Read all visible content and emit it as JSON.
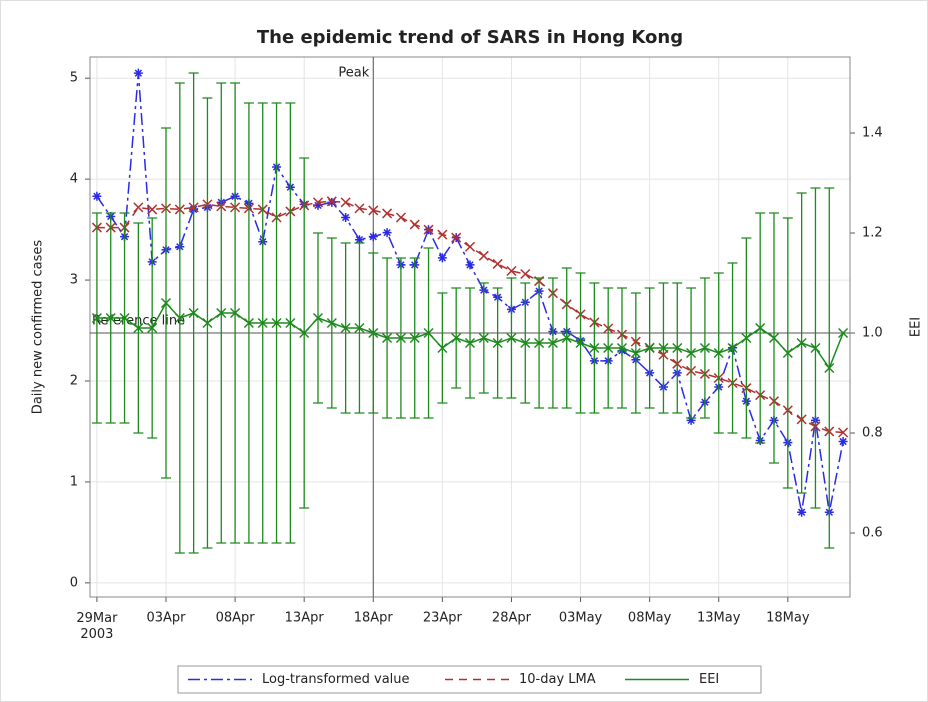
{
  "chart_data": {
    "type": "line",
    "title": "The epidemic trend of SARS in Hong Kong",
    "y_label": "Daily new confirmed cases",
    "y2_label": "EEI",
    "x": [
      "2003-03-29",
      "2003-03-30",
      "2003-03-31",
      "2003-04-01",
      "2003-04-02",
      "2003-04-03",
      "2003-04-04",
      "2003-04-05",
      "2003-04-06",
      "2003-04-07",
      "2003-04-08",
      "2003-04-09",
      "2003-04-10",
      "2003-04-11",
      "2003-04-12",
      "2003-04-13",
      "2003-04-14",
      "2003-04-15",
      "2003-04-16",
      "2003-04-17",
      "2003-04-18",
      "2003-04-19",
      "2003-04-20",
      "2003-04-21",
      "2003-04-22",
      "2003-04-23",
      "2003-04-24",
      "2003-04-25",
      "2003-04-26",
      "2003-04-27",
      "2003-04-28",
      "2003-04-29",
      "2003-04-30",
      "2003-05-01",
      "2003-05-02",
      "2003-05-03",
      "2003-05-04",
      "2003-05-05",
      "2003-05-06",
      "2003-05-07",
      "2003-05-08",
      "2003-05-09",
      "2003-05-10",
      "2003-05-11",
      "2003-05-12",
      "2003-05-13",
      "2003-05-14",
      "2003-05-15",
      "2003-05-16",
      "2003-05-17",
      "2003-05-18",
      "2003-05-19",
      "2003-05-20",
      "2003-05-21",
      "2003-05-22"
    ],
    "xlim": [
      "2003-03-28T12:00Z",
      "2003-05-22T12:00Z"
    ],
    "xticks": [
      {
        "value": "2003-03-29",
        "label": "29Mar\n2003"
      },
      {
        "value": "2003-04-03",
        "label": "03Apr"
      },
      {
        "value": "2003-04-08",
        "label": "08Apr"
      },
      {
        "value": "2003-04-13",
        "label": "13Apr"
      },
      {
        "value": "2003-04-18",
        "label": "18Apr"
      },
      {
        "value": "2003-04-23",
        "label": "23Apr"
      },
      {
        "value": "2003-04-28",
        "label": "28Apr"
      },
      {
        "value": "2003-05-03",
        "label": "03May"
      },
      {
        "value": "2003-05-08",
        "label": "08May"
      },
      {
        "value": "2003-05-13",
        "label": "13May"
      },
      {
        "value": "2003-05-18",
        "label": "18May"
      }
    ],
    "ylim": [
      -0.14,
      5.21
    ],
    "yticks": [
      0,
      1,
      2,
      3,
      4,
      5
    ],
    "y2lim": [
      0.472,
      1.552
    ],
    "y2ticks": [
      0.6,
      0.8,
      {
        "value": 1,
        "label": "1.0"
      },
      1.2,
      1.4
    ],
    "grid": true,
    "series": [
      {
        "name": "Log-transformed value",
        "color": "#2a2ae8",
        "line_style": "dash-dot",
        "marker": "asterisk",
        "values": [
          3.83,
          3.63,
          3.43,
          5.05,
          3.18,
          3.3,
          3.33,
          3.7,
          3.72,
          3.77,
          3.83,
          3.76,
          3.38,
          4.12,
          3.92,
          3.75,
          3.74,
          3.77,
          3.62,
          3.4,
          3.43,
          3.47,
          3.15,
          3.15,
          3.5,
          3.22,
          3.42,
          3.15,
          2.9,
          2.83,
          2.71,
          2.78,
          2.89,
          2.49,
          2.49,
          2.4,
          2.2,
          2.2,
          2.3,
          2.21,
          2.08,
          1.94,
          2.08,
          1.61,
          1.79,
          1.94,
          2.33,
          1.8,
          1.41,
          1.61,
          1.39,
          0.7,
          1.61,
          0.7,
          1.4
        ]
      },
      {
        "name": "10-day LMA",
        "color": "#b03030",
        "line_style": "dash",
        "marker": "x",
        "values": [
          3.52,
          3.52,
          3.52,
          3.72,
          3.7,
          3.71,
          3.7,
          3.72,
          3.75,
          3.73,
          3.72,
          3.71,
          3.7,
          3.62,
          3.68,
          3.74,
          3.77,
          3.78,
          3.77,
          3.71,
          3.69,
          3.66,
          3.62,
          3.55,
          3.5,
          3.45,
          3.42,
          3.33,
          3.24,
          3.16,
          3.09,
          3.06,
          2.99,
          2.87,
          2.76,
          2.66,
          2.58,
          2.52,
          2.46,
          2.39,
          2.33,
          2.26,
          2.17,
          2.1,
          2.07,
          2.03,
          1.98,
          1.93,
          1.86,
          1.8,
          1.71,
          1.62,
          1.55,
          1.5,
          1.49
        ]
      },
      {
        "name": "EEI",
        "color": "#1e8a1e",
        "line_style": "solid",
        "marker": "x",
        "axis": "y2",
        "values": [
          1.03,
          1.03,
          1.03,
          1.01,
          1.01,
          1.06,
          1.03,
          1.04,
          1.02,
          1.04,
          1.04,
          1.02,
          1.02,
          1.02,
          1.02,
          1.0,
          1.03,
          1.02,
          1.01,
          1.01,
          1.0,
          0.99,
          0.99,
          0.99,
          1.0,
          0.97,
          0.99,
          0.98,
          0.99,
          0.98,
          0.99,
          0.98,
          0.98,
          0.98,
          0.99,
          0.98,
          0.97,
          0.97,
          0.97,
          0.96,
          0.97,
          0.97,
          0.97,
          0.96,
          0.97,
          0.96,
          0.97,
          0.99,
          1.01,
          0.99,
          0.96,
          0.98,
          0.97,
          0.93,
          1.0
        ],
        "errors": [
          0.21,
          0.21,
          0.21,
          0.21,
          0.22,
          0.35,
          0.47,
          0.48,
          0.45,
          0.46,
          0.46,
          0.44,
          0.44,
          0.44,
          0.44,
          0.35,
          0.17,
          0.17,
          0.17,
          0.17,
          0.16,
          0.16,
          0.16,
          0.16,
          0.17,
          0.11,
          0.1,
          0.11,
          0.11,
          0.11,
          0.12,
          0.12,
          0.13,
          0.13,
          0.14,
          0.14,
          0.13,
          0.12,
          0.12,
          0.12,
          0.12,
          0.13,
          0.13,
          0.13,
          0.14,
          0.16,
          0.17,
          0.2,
          0.23,
          0.25,
          0.27,
          0.3,
          0.32,
          0.36,
          null
        ]
      }
    ],
    "annotations": [
      {
        "text": "Peak",
        "x": "2003-04-18"
      },
      {
        "text": "Reference line",
        "y2": 1
      }
    ]
  }
}
